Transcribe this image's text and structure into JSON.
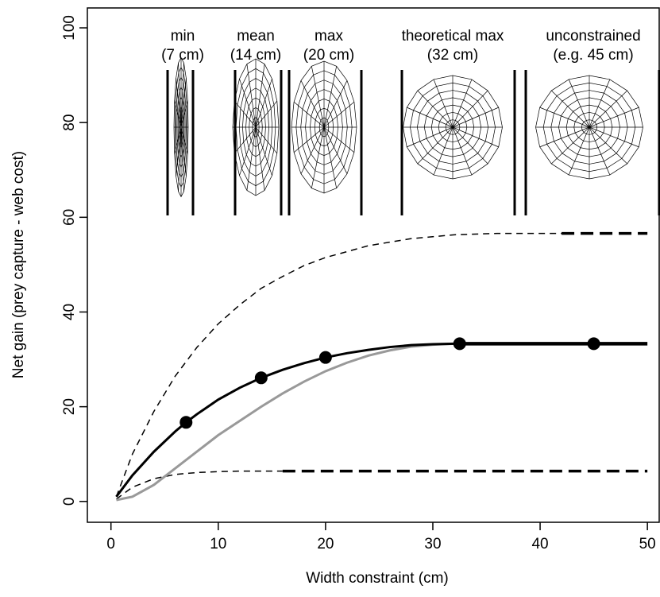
{
  "chart_data": {
    "type": "line",
    "x_label": "Width constraint (cm)",
    "y_label": "Net gain (prey capture - web cost)",
    "xlim": [
      -2.2,
      51.1
    ],
    "ylim": [
      -4.4,
      104.2
    ],
    "xticks": [
      0,
      10,
      20,
      30,
      40,
      50
    ],
    "yticks": [
      0,
      20,
      40,
      60,
      80,
      100
    ],
    "annotations": [
      {
        "text": [
          "min",
          "(7 cm)"
        ]
      },
      {
        "text": [
          "mean",
          "(14 cm)"
        ]
      },
      {
        "text": [
          "max",
          "(20 cm)"
        ]
      },
      {
        "text": [
          "theoretical max",
          "(32 cm)"
        ]
      },
      {
        "text": [
          "unconstrained",
          "(e.g. 45 cm)"
        ]
      }
    ],
    "series": [
      {
        "color": "#000000",
        "dashed": true,
        "line_width": 1.5,
        "x": [
          0.5,
          2,
          4,
          6,
          8,
          10,
          12,
          14,
          16,
          18,
          20,
          24,
          28,
          32,
          36,
          42
        ],
        "values": [
          1,
          10,
          19,
          26.5,
          32.5,
          37.5,
          41.5,
          45,
          47.5,
          49.8,
          51.5,
          54,
          55.5,
          56.3,
          56.6,
          56.6
        ]
      },
      {
        "color": "#000000",
        "dashed": true,
        "line_width": 3.5,
        "x": [
          42,
          50
        ],
        "values": [
          56.6,
          56.6
        ]
      },
      {
        "color": "#000000",
        "dashed": true,
        "line_width": 1.5,
        "x": [
          0.5,
          2,
          4,
          6,
          8,
          10,
          12,
          14,
          16
        ],
        "values": [
          0.5,
          3,
          4.8,
          5.7,
          6.1,
          6.3,
          6.4,
          6.4,
          6.4
        ]
      },
      {
        "color": "#000000",
        "dashed": true,
        "line_width": 3.5,
        "x": [
          16,
          50
        ],
        "values": [
          6.4,
          6.4
        ]
      },
      {
        "color": "#999999",
        "dashed": false,
        "line_width": 3,
        "x": [
          0.5,
          2,
          4,
          6,
          8,
          10,
          12,
          14,
          16,
          18,
          20,
          22,
          24,
          26,
          28,
          30,
          32
        ],
        "values": [
          0.3,
          1,
          3.5,
          7,
          10.5,
          14,
          17,
          20,
          22.8,
          25.3,
          27.5,
          29.3,
          30.8,
          31.9,
          32.7,
          33.1,
          33.3
        ]
      },
      {
        "color": "#000000",
        "dashed": false,
        "line_width": 3,
        "x": [
          0.5,
          2,
          4,
          6,
          7,
          8,
          10,
          12,
          14,
          16,
          18,
          20,
          22,
          24,
          26,
          28,
          30,
          32
        ],
        "values": [
          1,
          5.5,
          10.5,
          14.8,
          16.7,
          18.4,
          21.5,
          24,
          26.1,
          27.8,
          29.2,
          30.4,
          31.3,
          32,
          32.6,
          33,
          33.2,
          33.3
        ]
      },
      {
        "color": "#000000",
        "dashed": false,
        "line_width": 4.5,
        "x": [
          32,
          50
        ],
        "values": [
          33.3,
          33.3
        ]
      },
      {
        "color": "#000000",
        "markers": true,
        "x": [
          7,
          14,
          20,
          32.5,
          45
        ],
        "values": [
          16.7,
          26.1,
          30.4,
          33.3,
          33.3
        ]
      }
    ]
  }
}
